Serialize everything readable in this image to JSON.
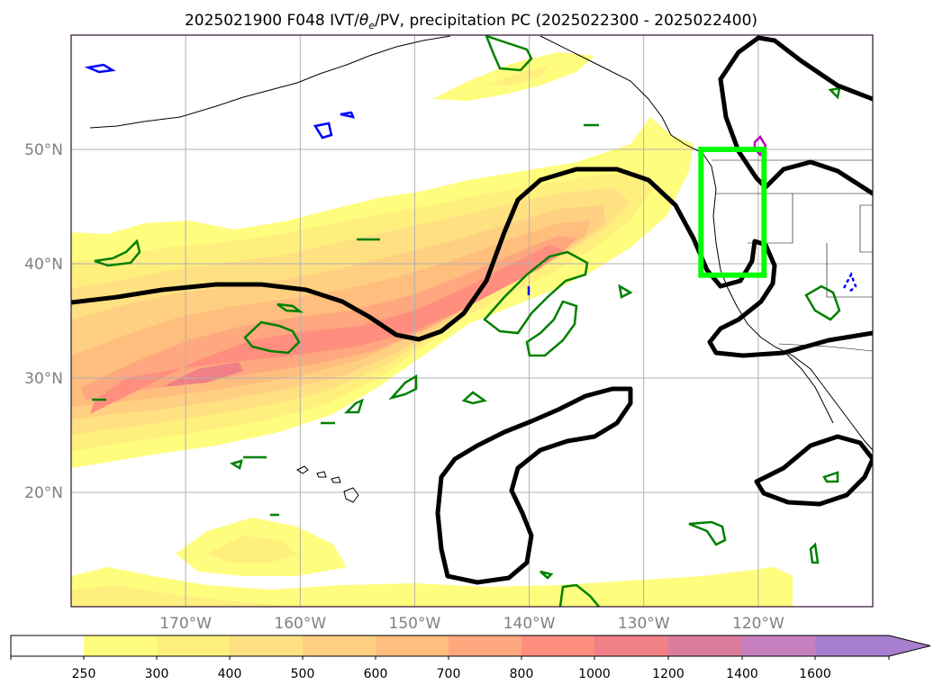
{
  "title": {
    "prefix": "2025021900 F048 IVT/",
    "theta": "θ",
    "theta_sub": "e",
    "suffix": "/PV, precipitation PC (2025022300 - 2025022400)"
  },
  "map": {
    "lon_range": [
      -180,
      -110
    ],
    "lat_range": [
      10,
      60
    ],
    "gridlines": true,
    "lon_ticks": [
      {
        "lon": -170,
        "label": "170°W"
      },
      {
        "lon": -160,
        "label": "160°W"
      },
      {
        "lon": -150,
        "label": "150°W"
      },
      {
        "lon": -140,
        "label": "140°W"
      },
      {
        "lon": -130,
        "label": "130°W"
      },
      {
        "lon": -120,
        "label": "120°W"
      }
    ],
    "lat_ticks": [
      {
        "lat": 50,
        "label": "50°N"
      },
      {
        "lat": 40,
        "label": "40°N"
      },
      {
        "lat": 30,
        "label": "30°N"
      },
      {
        "lat": 20,
        "label": "20°N"
      }
    ],
    "highlight_box": {
      "lon_min": -125,
      "lon_max": -119.5,
      "lat_min": 39,
      "lat_max": 50,
      "color": "#00ff00"
    }
  },
  "colorbar": {
    "levels": [
      "250",
      "300",
      "400",
      "500",
      "600",
      "700",
      "800",
      "1000",
      "1200",
      "1400",
      "1600"
    ],
    "colors": [
      "#ffffff",
      "#fffd7e",
      "#fff07e",
      "#ffe182",
      "#ffd082",
      "#ffbd7e",
      "#ffa77e",
      "#ff8e7e",
      "#f07f86",
      "#db7c9c",
      "#c67fbe",
      "#a87fce"
    ],
    "extend": "max"
  },
  "colors": {
    "jet_contour": "#000000",
    "pv_contour": "#008000",
    "neg_contour": "#0000ff",
    "magenta_contour": "#c000c0",
    "tick_label": "#808080"
  }
}
